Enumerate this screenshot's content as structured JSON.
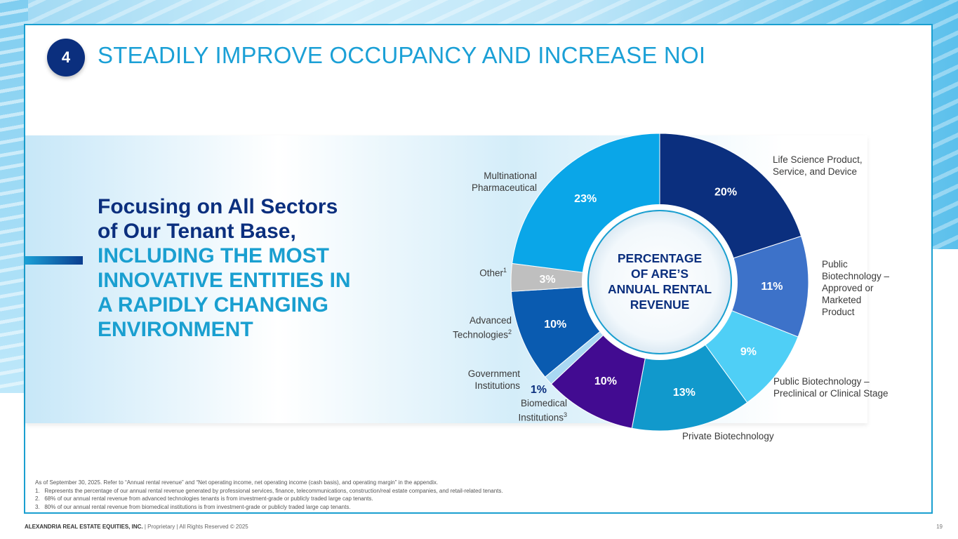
{
  "slide": {
    "number_badge": "4",
    "title": "STEADILY IMPROVE OCCUPANCY AND INCREASE NOI",
    "headline_line1": "Focusing on All Sectors",
    "headline_line2": "of Our Tenant Base,",
    "headline_line3": "INCLUDING THE MOST",
    "headline_line4": "INNOVATIVE ENTITIES IN",
    "headline_line5": "A RAPIDLY CHANGING",
    "headline_line6": "ENVIRONMENT"
  },
  "chart_data": {
    "type": "pie",
    "variant": "donut",
    "title": "PERCENTAGE OF ARE'S ANNUAL RENTAL REVENUE",
    "center_lines": [
      "PERCENTAGE",
      "OF ARE’S",
      "ANNUAL RENTAL",
      "REVENUE"
    ],
    "start": "top",
    "direction": "clockwise",
    "slices": [
      {
        "name": "Life Science Product, Service, and Device",
        "value": 20,
        "label": "20%",
        "color": "#0b2f7e"
      },
      {
        "name": "Public Biotechnology – Approved or Marketed Product",
        "value": 11,
        "label": "11%",
        "color": "#3d72c9"
      },
      {
        "name": "Public Biotechnology – Preclinical or Clinical Stage",
        "value": 9,
        "label": "9%",
        "color": "#4fcff6"
      },
      {
        "name": "Private Biotechnology",
        "value": 13,
        "label": "13%",
        "color": "#1199cc"
      },
      {
        "name": "Biomedical Institutions",
        "footnote": "3",
        "value": 10,
        "label": "10%",
        "color": "#420b91"
      },
      {
        "name": "Government Institutions",
        "value": 1,
        "label": "1%",
        "color": "#a9d8f3"
      },
      {
        "name": "Advanced Technologies",
        "footnote": "2",
        "value": 10,
        "label": "10%",
        "color": "#0a5bb0"
      },
      {
        "name": "Other",
        "footnote": "1",
        "value": 3,
        "label": "3%",
        "color": "#bfbfbf"
      },
      {
        "name": "Multinational Pharmaceutical",
        "value": 23,
        "label": "23%",
        "color": "#0aa6e8"
      }
    ]
  },
  "labels": {
    "life_science": [
      "Life Science Product,",
      "Service, and Device"
    ],
    "public_approved": [
      "Public",
      "Biotechnology –",
      "Approved or",
      "Marketed",
      "Product"
    ],
    "public_preclinical": [
      "Public Biotechnology –",
      "Preclinical or Clinical Stage"
    ],
    "private": "Private Biotechnology",
    "biomedical": [
      "Biomedical",
      "Institutions"
    ],
    "biomedical_sup": "3",
    "government": [
      "Government",
      "Institutions"
    ],
    "advanced": [
      "Advanced",
      "Technologies"
    ],
    "advanced_sup": "2",
    "other": "Other",
    "other_sup": "1",
    "multinational": [
      "Multinational",
      "Pharmaceutical"
    ]
  },
  "notes": {
    "intro": "As of September 30, 2025. Refer to “Annual rental revenue” and “Net operating income, net operating income (cash basis), and operating margin” in the appendix.",
    "items": [
      "1.   Represents the percentage of our annual rental revenue generated by professional services, finance, telecommunications, construction/real estate companies, and retail-related tenants.",
      "2.   68% of our annual rental revenue from advanced technologies tenants is from investment-grade or publicly traded large cap tenants.",
      "3.   80% of our annual rental revenue from biomedical institutions is from investment-grade or publicly traded large cap tenants."
    ]
  },
  "footer": {
    "company": "ALEXANDRIA REAL ESTATE EQUITIES, INC.",
    "rest": " | Proprietary | All Rights Reserved © 2025",
    "page": "19"
  }
}
